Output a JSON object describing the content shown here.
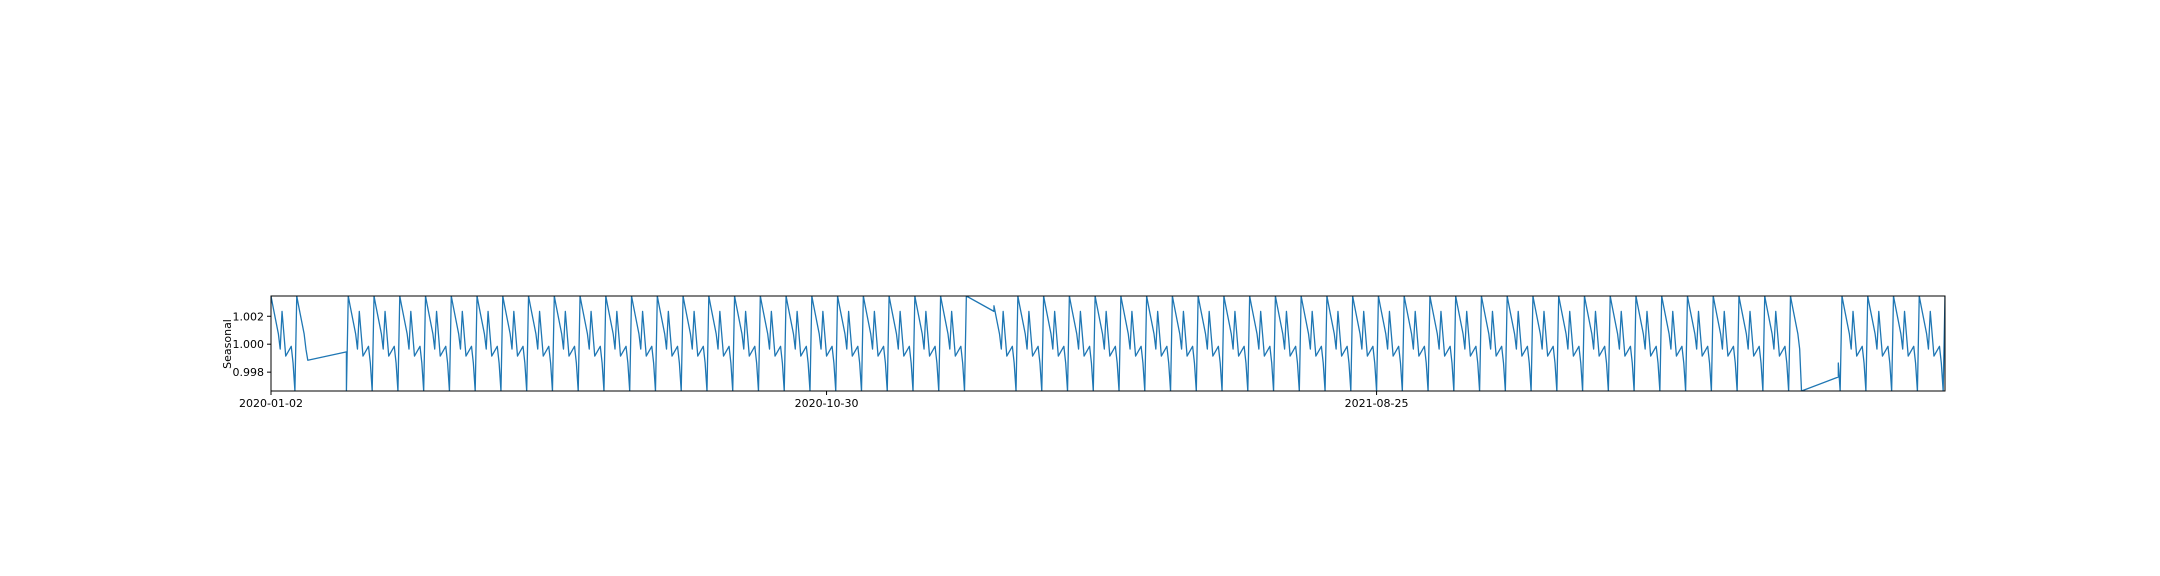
{
  "chart_data": {
    "type": "line",
    "title": "",
    "xlabel": "",
    "ylabel": "Seasonal",
    "series_color": "#1f77b4",
    "grid": false,
    "x_type": "date",
    "xlim": [
      "2020-01-02",
      "2022-06-30"
    ],
    "ylim": [
      0.99665,
      1.00345
    ],
    "y_ticks": [
      0.998,
      1.0,
      1.002
    ],
    "y_tick_labels": [
      "0.998",
      "1.000",
      "1.002"
    ],
    "x_ticks": [
      "2020-01-02",
      "2020-10-30",
      "2021-08-25"
    ],
    "x_tick_labels": [
      "2020-01-02",
      "2020-10-30",
      "2021-08-25"
    ],
    "weekly_pattern": [
      1.00345,
      1.00275,
      1.00075,
      0.99965,
      1.00235,
      1.00075,
      0.99915,
      0.99985,
      0.99865,
      0.99665
    ],
    "gaps": [
      {
        "after": "2020-01-22",
        "until": "2020-02-12",
        "from_value": 0.99885,
        "to_value": 0.99945
      },
      {
        "after": "2021-01-14",
        "until": "2021-01-29",
        "from_value": 1.00345,
        "to_value": 1.00235
      },
      {
        "after": "2022-04-13",
        "until": "2022-05-03",
        "from_value": 0.99665,
        "to_value": 0.99765
      }
    ]
  }
}
